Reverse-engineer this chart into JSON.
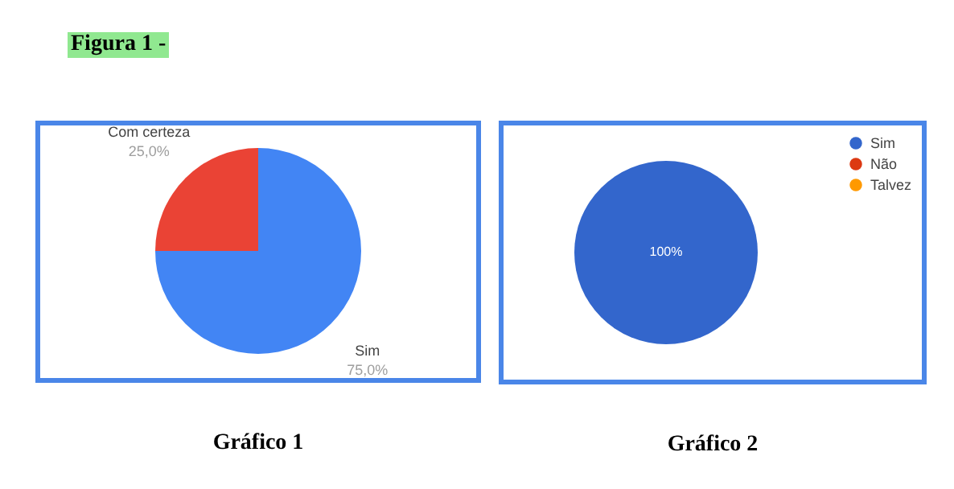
{
  "chart_data": [
    {
      "type": "pie",
      "title": "Figura 1 -",
      "categories": [
        "Sim",
        "Com certeza"
      ],
      "values": [
        75,
        25
      ],
      "colors": [
        "#4285f4",
        "#ea4335"
      ],
      "value_labels": [
        "75,0%",
        "25,0%"
      ],
      "annotations": [
        "Gráfico 1"
      ]
    },
    {
      "type": "pie",
      "categories": [
        "Sim",
        "Não",
        "Talvez"
      ],
      "values": [
        100,
        0,
        0
      ],
      "colors": [
        "#3366cc",
        "#dc3912",
        "#ff9900"
      ],
      "value_labels": [
        "100%",
        null,
        null
      ],
      "legend": "top right",
      "annotations": [
        "Gráfico 2"
      ]
    }
  ]
}
